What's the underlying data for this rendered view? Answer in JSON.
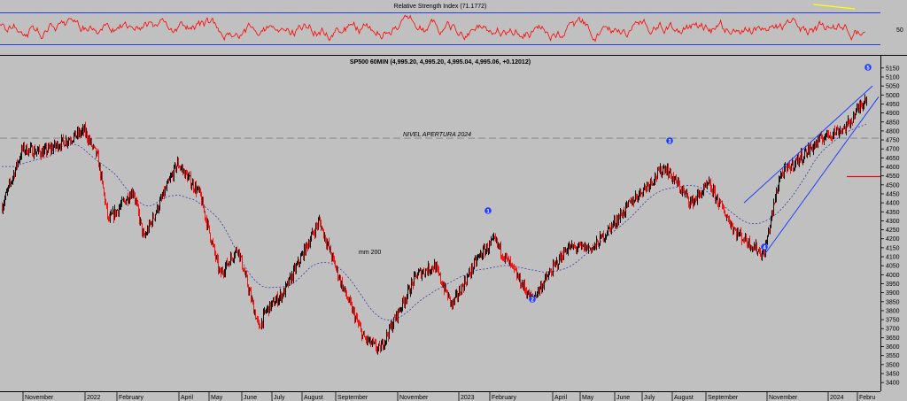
{
  "colors": {
    "background": "#c0c0c0",
    "rsi_line": "#ff0000",
    "price_up": "#000000",
    "price_down": "#ff0000",
    "moving_average": "#3a3aa8",
    "trend_channel": "#1e3cff",
    "wave_marker": "#1e3cff",
    "rsi_divergence": "#ffff00",
    "level_marker": "#ff0000",
    "opening_level": "#808080"
  },
  "rsi_panel": {
    "title": "Relative Strength Index (71.1772)",
    "mid_label": "50"
  },
  "price_panel": {
    "title": "SP500 60MIN (4,995.20, 4,995.20, 4,995.04, 4,995.06, +0.12012)",
    "opening_level_label": "NIVEL APERTURA 2024",
    "ma_label": "mm 200"
  },
  "wave_labels": [
    "1",
    "2",
    "3",
    "4",
    "5"
  ],
  "chart_data": [
    {
      "type": "line",
      "title": "Relative Strength Index (71.1772)",
      "series": [
        {
          "name": "Relative Strength Index",
          "last": 71.1772
        }
      ],
      "ytick_labels": [
        "50"
      ]
    },
    {
      "type": "candlestick",
      "title": "SP500 60MIN (4,995.20, 4,995.20, 4,995.04, 4,995.06, +0.12012)",
      "ohlc_last": {
        "open": 4995.2,
        "high": 4995.2,
        "low": 4995.04,
        "close": 4995.06,
        "change": 0.12012
      },
      "ylim": [
        3400,
        5200
      ],
      "yticks": [
        3400,
        3450,
        3500,
        3550,
        3600,
        3650,
        3700,
        3750,
        3800,
        3850,
        3900,
        3950,
        4000,
        4050,
        4100,
        4150,
        4200,
        4250,
        4300,
        4350,
        4400,
        4450,
        4500,
        4550,
        4600,
        4650,
        4700,
        4750,
        4800,
        4850,
        4900,
        4950,
        5000,
        5050,
        5100,
        5150
      ],
      "x_tick_labels": [
        "November",
        "2022",
        "February",
        "April",
        "May",
        "June",
        "July",
        "August",
        "September",
        "November",
        "2023",
        "February",
        "April",
        "May",
        "June",
        "July",
        "August",
        "September",
        "November",
        "2024",
        "Febru"
      ],
      "close_path": [
        [
          "2021-10",
          4380
        ],
        [
          "2021-11",
          4700
        ],
        [
          "2021-12",
          4680
        ],
        [
          "2021-12",
          4800
        ],
        [
          "2022-01",
          4650
        ],
        [
          "2022-01",
          4300
        ],
        [
          "2022-02",
          4470
        ],
        [
          "2022-03",
          4200
        ],
        [
          "2022-03",
          4620
        ],
        [
          "2022-04",
          4450
        ],
        [
          "2022-05",
          4000
        ],
        [
          "2022-05",
          4150
        ],
        [
          "2022-06",
          3700
        ],
        [
          "2022-06",
          3800
        ],
        [
          "2022-07",
          3900
        ],
        [
          "2022-08",
          4300
        ],
        [
          "2022-09",
          3950
        ],
        [
          "2022-09",
          3650
        ],
        [
          "2022-10",
          3580
        ],
        [
          "2022-11",
          4000
        ],
        [
          "2022-12",
          4050
        ],
        [
          "2022-12",
          3830
        ],
        [
          "2023-01",
          4100
        ],
        [
          "2023-02",
          4190
        ],
        [
          "2023-03",
          3860
        ],
        [
          "2023-04",
          4150
        ],
        [
          "2023-05",
          4150
        ],
        [
          "2023-06",
          4420
        ],
        [
          "2023-07",
          4600
        ],
        [
          "2023-08",
          4400
        ],
        [
          "2023-09",
          4500
        ],
        [
          "2023-10",
          4240
        ],
        [
          "2023-10",
          4110
        ],
        [
          "2023-11",
          4550
        ],
        [
          "2023-12",
          4770
        ],
        [
          "2024-01",
          4820
        ],
        [
          "2024-02",
          4995
        ]
      ],
      "annotations": [
        {
          "text": "NIVEL APERTURA 2024",
          "y": 4760
        },
        {
          "text": "mm 200"
        }
      ],
      "wave_points": [
        {
          "label": "1",
          "date": "2023-02",
          "value": 4195
        },
        {
          "label": "2",
          "date": "2023-03",
          "value": 3810
        },
        {
          "label": "3",
          "date": "2023-07",
          "value": 4605
        },
        {
          "label": "4",
          "date": "2023-10",
          "value": 4105
        },
        {
          "label": "5",
          "date": "2024-02",
          "value": 5000
        }
      ]
    }
  ]
}
